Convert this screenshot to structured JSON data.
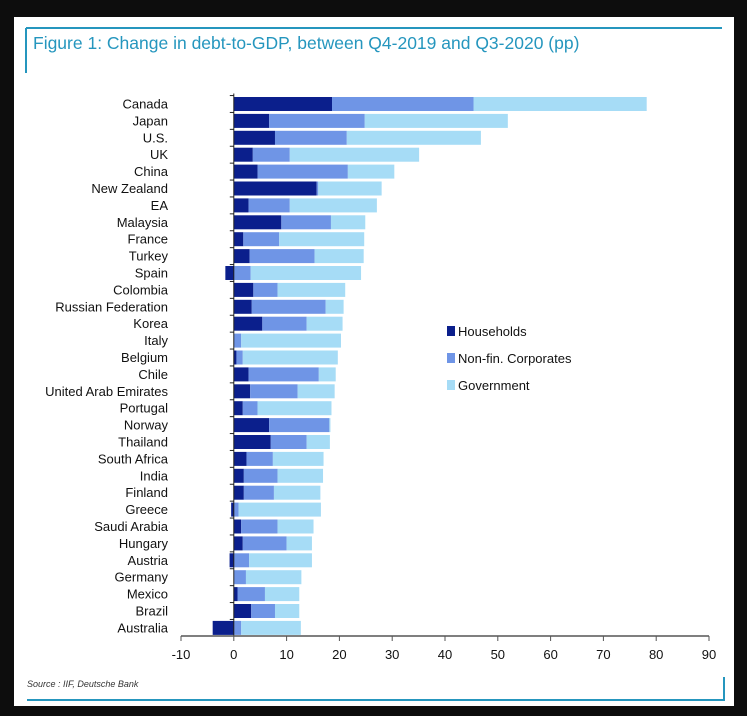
{
  "chart_data": {
    "type": "bar",
    "orientation": "horizontal",
    "stacked": true,
    "title": "Figure 1: Change in debt-to-GDP, between Q4-2019 and Q3-2020 (pp)",
    "source": "Source : IIF, Deutsche Bank",
    "xlim": [
      -10,
      90
    ],
    "xticks": [
      -10,
      0,
      10,
      20,
      30,
      40,
      50,
      60,
      70,
      80,
      90
    ],
    "grid": false,
    "legend_position": "center-right",
    "categories": [
      "Canada",
      "Japan",
      "U.S.",
      "UK",
      "China",
      "New Zealand",
      "EA",
      "Malaysia",
      "France",
      "Turkey",
      "Spain",
      "Colombia",
      "Russian Federation",
      "Korea",
      "Italy",
      "Belgium",
      "Chile",
      "United Arab Emirates",
      "Portugal",
      "Norway",
      "Thailand",
      "South Africa",
      "India",
      "Finland",
      "Greece",
      "Saudi Arabia",
      "Hungary",
      "Austria",
      "Germany",
      "Mexico",
      "Brazil",
      "Australia"
    ],
    "series": [
      {
        "name": "Households",
        "color": "#0b1f8c",
        "values": [
          18.6,
          6.7,
          7.8,
          3.6,
          4.5,
          15.7,
          2.8,
          9.0,
          1.8,
          3.0,
          -1.6,
          3.7,
          3.4,
          5.4,
          0.0,
          0.5,
          2.8,
          3.1,
          1.7,
          6.7,
          7.0,
          2.4,
          1.9,
          1.9,
          -0.5,
          1.4,
          1.7,
          -0.8,
          0.0,
          0.7,
          3.3,
          -4.0
        ]
      },
      {
        "name": "Non-fin. Corporates",
        "color": "#6f95e6",
        "values": [
          26.8,
          18.1,
          13.6,
          7.0,
          17.1,
          0.3,
          7.8,
          9.4,
          6.8,
          12.3,
          3.2,
          4.6,
          14.0,
          8.4,
          1.4,
          1.2,
          13.3,
          9.0,
          2.8,
          11.4,
          6.8,
          5.0,
          6.4,
          5.7,
          0.9,
          6.9,
          8.3,
          2.9,
          2.3,
          5.2,
          4.5,
          1.4
        ]
      },
      {
        "name": "Government",
        "color": "#a6dcf6",
        "values": [
          32.8,
          27.1,
          25.4,
          24.5,
          8.8,
          12.0,
          16.5,
          6.5,
          16.1,
          9.3,
          20.9,
          12.8,
          3.4,
          6.8,
          18.9,
          18.0,
          3.2,
          7.0,
          14.0,
          0.2,
          4.4,
          9.6,
          8.6,
          8.8,
          15.6,
          6.8,
          4.8,
          11.9,
          10.5,
          6.5,
          4.6,
          11.3
        ]
      }
    ]
  },
  "colors": {
    "frame": "#2596be"
  }
}
